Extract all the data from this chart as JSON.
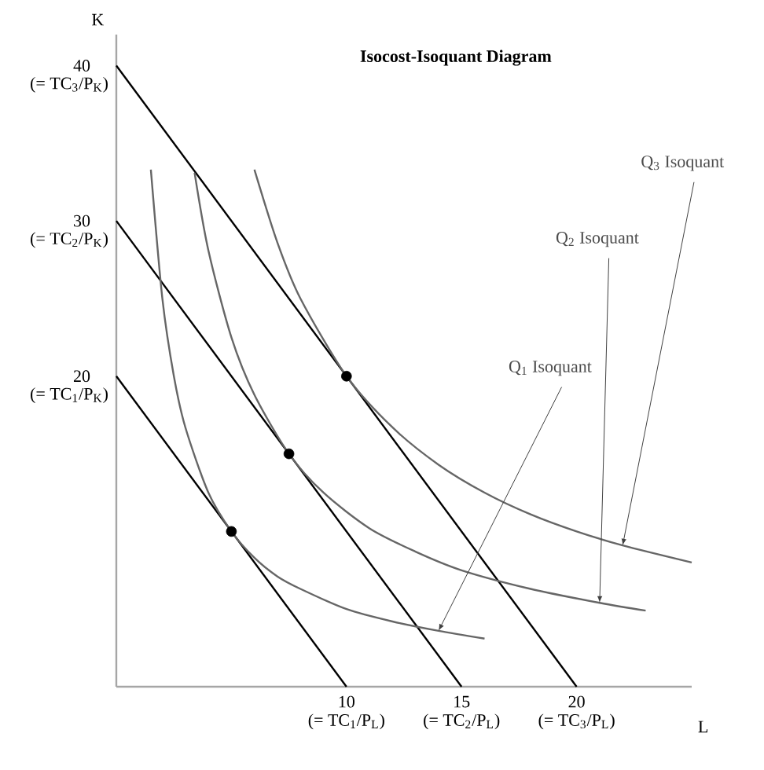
{
  "chart_data": {
    "type": "line",
    "title": "**Isocost-Isoquant Diagram**",
    "xlabel": "L",
    "ylabel": "K",
    "xlim": [
      0,
      25
    ],
    "ylim": [
      0,
      42
    ],
    "xticks": [
      10,
      15,
      20
    ],
    "yticks": [
      20,
      30,
      40
    ],
    "series": [
      {
        "color": "#000000",
        "x": [
          0,
          10
        ],
        "values": [
          20,
          0
        ]
      },
      {
        "color": "#000000",
        "x": [
          0,
          15
        ],
        "values": [
          30,
          0
        ]
      },
      {
        "color": "#000000",
        "x": [
          0,
          20
        ],
        "values": [
          40,
          0
        ]
      },
      {
        "color": "#666666",
        "x": [
          1.5,
          2,
          2.5,
          3,
          4,
          5,
          6,
          7,
          8,
          10,
          12,
          14,
          16
        ],
        "values": [
          33.3,
          25,
          20,
          16.7,
          12.5,
          10,
          8.3,
          7.1,
          6.3,
          5,
          4.2,
          3.6,
          3.1
        ]
      },
      {
        "color": "#666666",
        "x": [
          3.4,
          4,
          5,
          6,
          7.5,
          9,
          11,
          13,
          15,
          18,
          21,
          23
        ],
        "values": [
          33.1,
          28.1,
          22.5,
          18.8,
          15,
          12.5,
          10.2,
          8.7,
          7.5,
          6.3,
          5.4,
          4.9
        ]
      },
      {
        "color": "#666666",
        "x": [
          6,
          7,
          8,
          10,
          12,
          14,
          16,
          18,
          20,
          22,
          25
        ],
        "values": [
          33.3,
          28.6,
          25,
          20,
          16.7,
          14.3,
          12.5,
          11.1,
          10,
          9.1,
          8
        ]
      },
      {
        "type": "scatter",
        "marker": "circle",
        "color": "#000000",
        "x": [
          5,
          7.5,
          10
        ],
        "values": [
          10,
          15,
          20
        ]
      }
    ],
    "annotations": [
      {
        "text": "(= TC$_{1}$/P$_{K}$)",
        "x": 0,
        "y": 20
      },
      {
        "text": "(= TC$_{2}$/P$_{K}$)",
        "x": 0,
        "y": 30
      },
      {
        "text": "(= TC$_{3}$/P$_{K}$)",
        "x": 0,
        "y": 40
      },
      {
        "text": "(= TC$_{1}$/P$_{L}$)",
        "x": 10,
        "y": 0
      },
      {
        "text": "(= TC$_{2}$/P$_{L}$)",
        "x": 15,
        "y": 0
      },
      {
        "text": "(= TC$_{3}$/P$_{L}$)",
        "x": 20,
        "y": 0
      },
      "Q$_{1}$ Isoquant",
      "Q$_{2}$ Isoquant",
      "Q$_{3}$ Isoquant"
    ]
  }
}
